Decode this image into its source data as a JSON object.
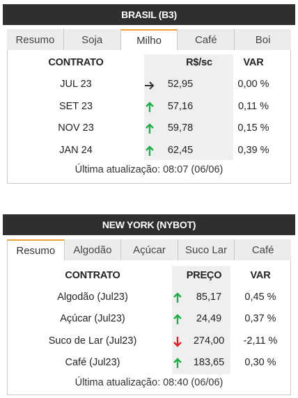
{
  "brasil": {
    "title": "BRASIL (B3)",
    "tabs": [
      {
        "label": "Resumo",
        "active": false
      },
      {
        "label": "Soja",
        "active": false
      },
      {
        "label": "Milho",
        "active": true
      },
      {
        "label": "Café",
        "active": false
      },
      {
        "label": "Boi",
        "active": false
      }
    ],
    "headers": {
      "contract": "CONTRATO",
      "price": "R$/sc",
      "var": "VAR"
    },
    "rows": [
      {
        "contract": "JUL 23",
        "trend": "flat",
        "price": "52,95",
        "var": "0,00 %"
      },
      {
        "contract": "SET 23",
        "trend": "up",
        "price": "57,16",
        "var": "0,11 %"
      },
      {
        "contract": "NOV 23",
        "trend": "up",
        "price": "59,78",
        "var": "0,15 %"
      },
      {
        "contract": "JAN 24",
        "trend": "up",
        "price": "62,45",
        "var": "0,39 %"
      }
    ],
    "footer": "Última atualização: 08:07 (06/06)"
  },
  "newyork": {
    "title": "NEW YORK (NYBOT)",
    "tabs": [
      {
        "label": "Resumo",
        "active": true
      },
      {
        "label": "Algodão",
        "active": false
      },
      {
        "label": "Açúcar",
        "active": false
      },
      {
        "label": "Suco Lar",
        "active": false
      },
      {
        "label": "Café",
        "active": false
      }
    ],
    "headers": {
      "contract": "CONTRATO",
      "price": "PREÇO",
      "var": "VAR"
    },
    "rows": [
      {
        "contract": "Algodão (Jul23)",
        "trend": "up",
        "price": "85,17",
        "var": "0,45 %"
      },
      {
        "contract": "Açúcar (Jul23)",
        "trend": "up",
        "price": "24,49",
        "var": "0,37 %"
      },
      {
        "contract": "Suco de Lar (Jul23)",
        "trend": "down",
        "price": "274,00",
        "var": "-2,11 %"
      },
      {
        "contract": "Café (Jul23)",
        "trend": "up",
        "price": "183,65",
        "var": "0,30 %"
      }
    ],
    "footer": "Última atualização: 08:40 (06/06)"
  },
  "colors": {
    "header_bg": "#2f2f2f",
    "active_tab_accent": "#f0a030",
    "up": "#1fae4b",
    "down": "#e02020",
    "flat": "#333333",
    "price_column_bg": "#efefef"
  },
  "icons": {
    "up": "arrow-up-icon",
    "down": "arrow-down-icon",
    "flat": "arrow-right-icon"
  }
}
